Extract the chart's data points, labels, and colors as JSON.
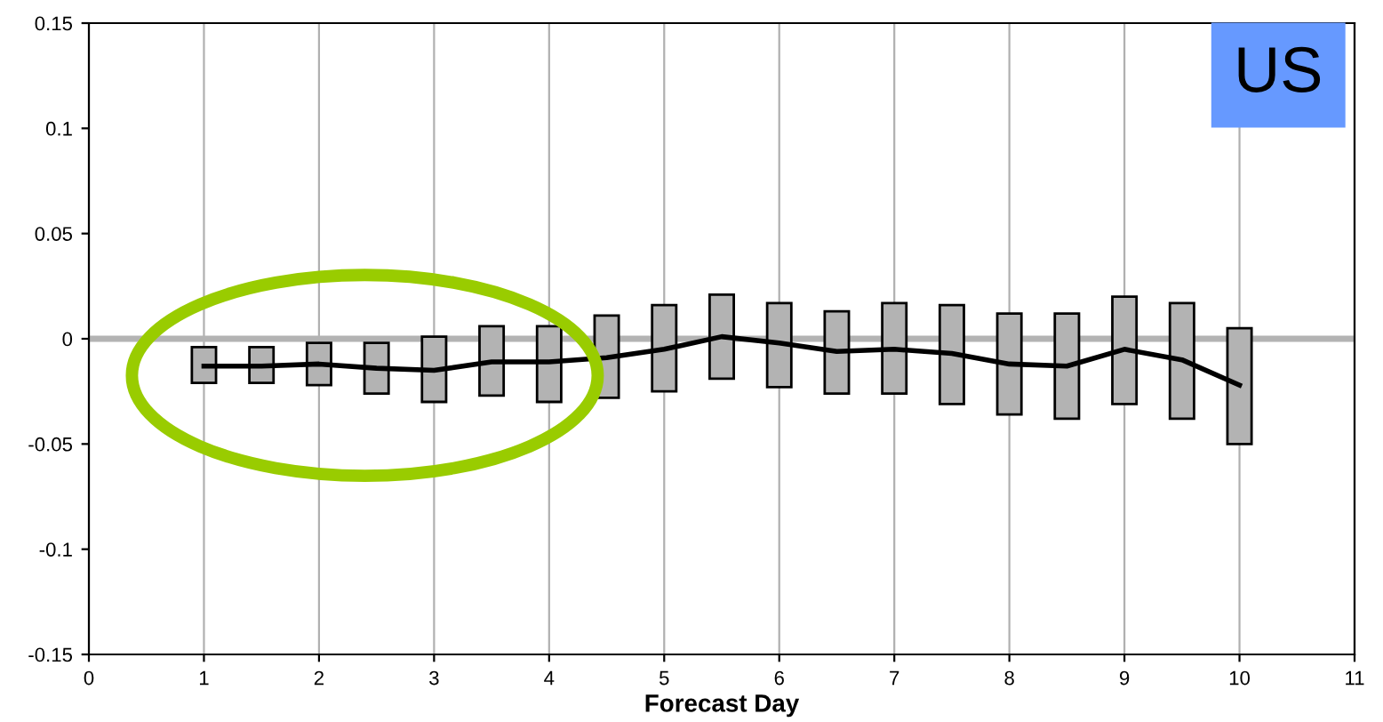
{
  "chart_data": {
    "type": "bar",
    "xlabel": "Forecast Day",
    "x": [
      1,
      1.5,
      2,
      2.5,
      3,
      3.5,
      4,
      4.5,
      5,
      5.5,
      6,
      6.5,
      7,
      7.5,
      8,
      8.5,
      9,
      9.5,
      10
    ],
    "series": [
      {
        "color": "#b3b3b3",
        "base": [
          -0.021,
          -0.021,
          -0.022,
          -0.026,
          -0.03,
          -0.027,
          -0.03,
          -0.028,
          -0.025,
          -0.019,
          -0.023,
          -0.026,
          -0.026,
          -0.031,
          -0.036,
          -0.038,
          -0.031,
          -0.038,
          -0.05
        ],
        "values": [
          0.017,
          0.017,
          0.02,
          0.024,
          0.031,
          0.033,
          0.036,
          0.039,
          0.041,
          0.04,
          0.04,
          0.039,
          0.043,
          0.047,
          0.048,
          0.05,
          0.051,
          0.055,
          0.055
        ]
      },
      {
        "type": "line",
        "color": "#000000",
        "values": [
          -0.013,
          -0.013,
          -0.012,
          -0.014,
          -0.015,
          -0.011,
          -0.011,
          -0.009,
          -0.005,
          0.001,
          -0.002,
          -0.006,
          -0.005,
          -0.007,
          -0.012,
          -0.013,
          -0.005,
          -0.01,
          -0.022
        ]
      }
    ],
    "xlim": [
      0,
      11
    ],
    "xticks": [
      0,
      1,
      2,
      3,
      4,
      5,
      6,
      7,
      8,
      9,
      10,
      11
    ],
    "ylim": [
      -0.15,
      0.15
    ],
    "yticks": [
      {
        "value": -0.15,
        "label": "-0.15"
      },
      {
        "value": -0.1,
        "label": "-0.1"
      },
      {
        "value": -0.05,
        "label": "-0.05"
      },
      0,
      0.05,
      0.1,
      0.15
    ],
    "ref_lines": [
      {
        "axis": "y",
        "value": 0,
        "color": "#b3b3b3"
      }
    ],
    "grid": "x",
    "legend": false,
    "annotations": [
      "US"
    ]
  }
}
